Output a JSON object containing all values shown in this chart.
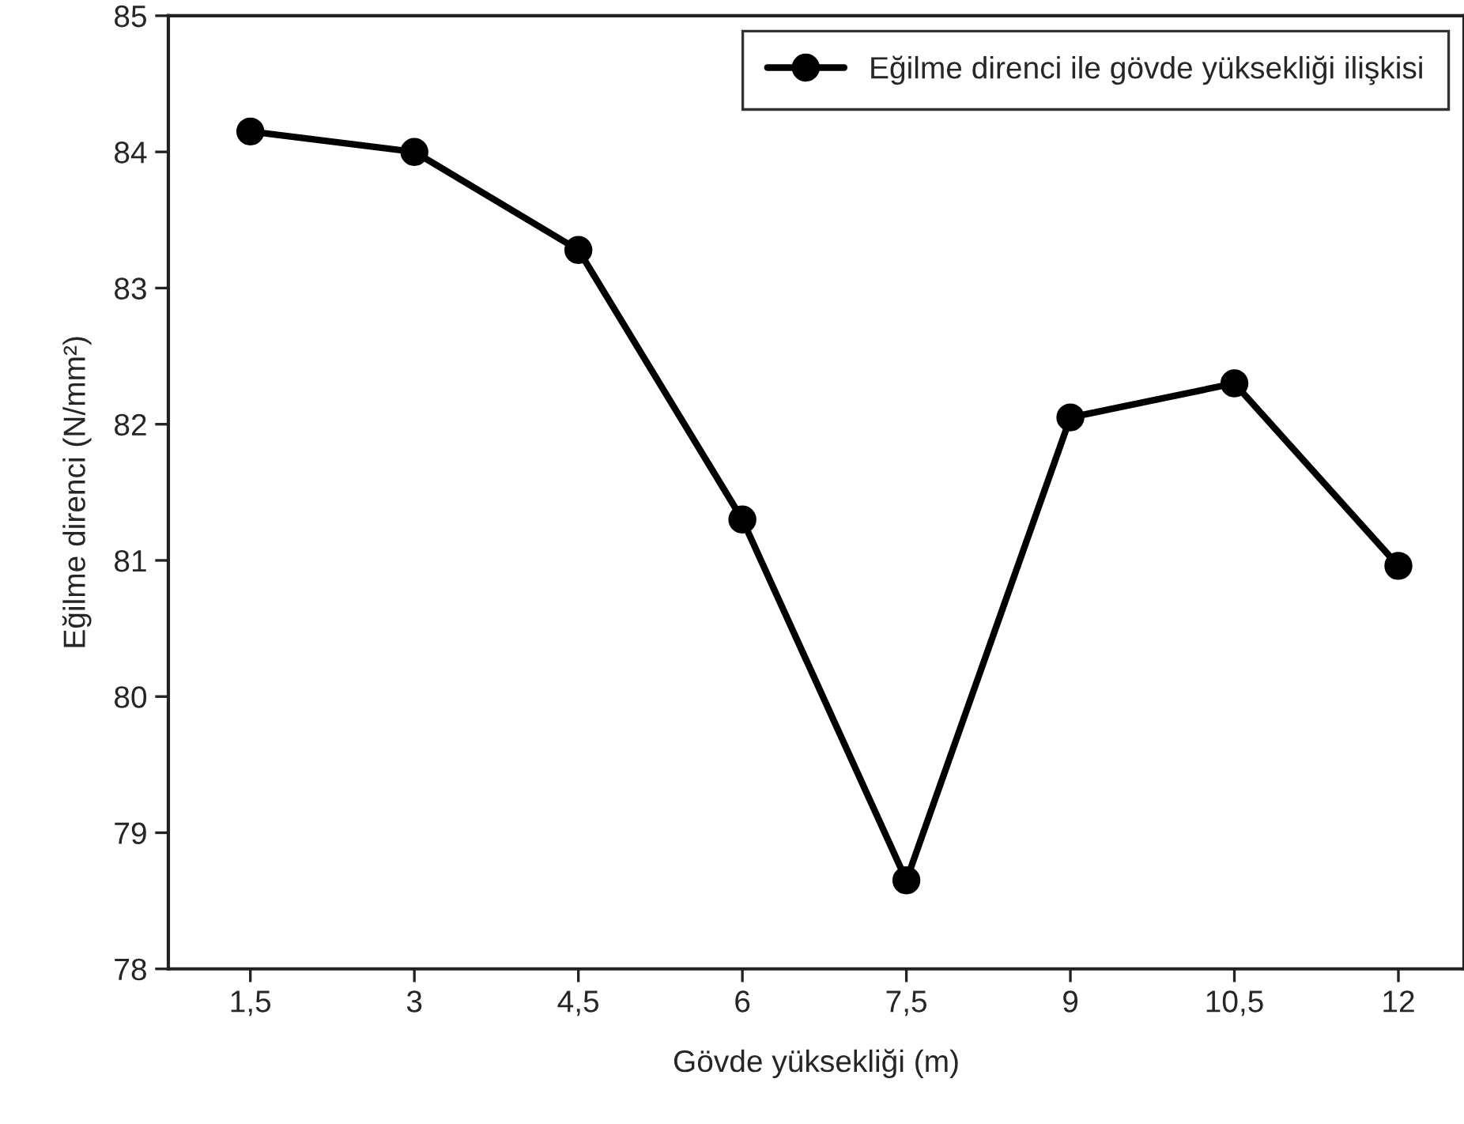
{
  "chart_data": {
    "type": "line",
    "xlabel": "Gövde yüksekliği (m)",
    "ylabel": "Eğilme direnci (N/mm²)",
    "x": [
      1.5,
      3,
      4.5,
      6,
      7.5,
      9,
      10.5,
      12
    ],
    "series": [
      {
        "name": "Eğilme direnci ile gövde yüksekliği ilişkisi",
        "color": "#000000",
        "values": [
          84.15,
          84.0,
          83.28,
          81.3,
          78.65,
          82.05,
          82.3,
          80.96
        ]
      }
    ],
    "xlim": [
      0.75,
      12.6
    ],
    "ylim": [
      78,
      85
    ],
    "xticks": [
      {
        "value": 1.5,
        "label": "1,5"
      },
      3,
      {
        "value": 4.5,
        "label": "4,5"
      },
      6,
      {
        "value": 7.5,
        "label": "7,5"
      },
      9,
      {
        "value": 10.5,
        "label": "10,5"
      },
      12
    ],
    "yticks": [
      78,
      79,
      80,
      81,
      82,
      83,
      84,
      85
    ],
    "grid": false,
    "legend": "top right",
    "marker": "circle",
    "line_style": "solid"
  }
}
